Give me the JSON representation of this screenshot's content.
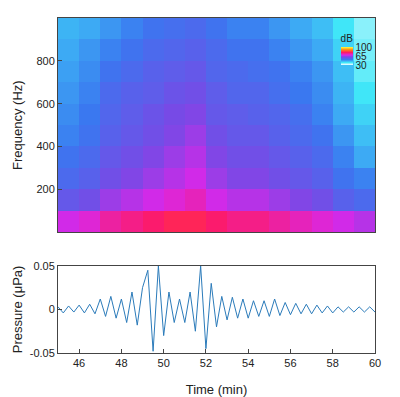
{
  "chart_data": [
    {
      "type": "heatmap",
      "y_label": "Frequency (Hz)",
      "tick_labels": "y",
      "xlim": [
        45,
        60
      ],
      "ylim": [
        0,
        1000
      ],
      "yticks": [
        200,
        400,
        600,
        800
      ],
      "x": [
        45.5,
        46.5,
        47.5,
        48.5,
        49.5,
        50.5,
        51.5,
        52.5,
        53.5,
        54.5,
        55.5,
        56.5,
        57.5,
        58.5,
        59.5
      ],
      "y": [
        50,
        150,
        250,
        350,
        450,
        550,
        650,
        750,
        850,
        950
      ],
      "cells": [
        [
          68,
          70,
          74,
          76,
          78,
          80,
          80,
          78,
          76,
          76,
          74,
          72,
          70,
          68,
          66
        ],
        [
          58,
          60,
          64,
          66,
          68,
          70,
          72,
          68,
          66,
          66,
          64,
          62,
          60,
          56,
          54
        ],
        [
          54,
          56,
          60,
          62,
          64,
          66,
          68,
          64,
          62,
          62,
          60,
          58,
          56,
          52,
          50
        ],
        [
          52,
          54,
          58,
          60,
          62,
          64,
          66,
          62,
          60,
          60,
          58,
          56,
          54,
          50,
          46
        ],
        [
          50,
          52,
          56,
          58,
          60,
          62,
          64,
          60,
          58,
          58,
          56,
          54,
          52,
          48,
          44
        ],
        [
          49,
          51,
          55,
          57,
          59,
          61,
          62,
          58,
          57,
          56,
          55,
          53,
          50,
          46,
          42
        ],
        [
          48,
          50,
          54,
          56,
          57,
          59,
          60,
          57,
          55,
          55,
          53,
          51,
          49,
          45,
          40
        ],
        [
          47,
          49,
          52,
          54,
          56,
          57,
          58,
          55,
          54,
          53,
          52,
          50,
          48,
          44,
          38
        ],
        [
          46,
          48,
          50,
          52,
          54,
          55,
          56,
          54,
          52,
          52,
          50,
          48,
          46,
          42,
          37
        ],
        [
          45,
          46,
          48,
          50,
          52,
          53,
          54,
          52,
          50,
          50,
          48,
          46,
          44,
          40,
          36
        ]
      ],
      "colorbar": {
        "title": "dB",
        "range": [
          30,
          100
        ],
        "ticks": [
          30,
          65,
          100
        ]
      }
    },
    {
      "type": "line",
      "x_label": "Time (min)",
      "y_label": "Pressure (μPa)",
      "color": "#2b7bba",
      "xlim": [
        45,
        60
      ],
      "ylim": [
        -0.05,
        0.05
      ],
      "xticks": [
        46,
        48,
        50,
        52,
        54,
        56,
        58,
        60
      ],
      "yticks": [
        -0.05,
        0,
        0.05
      ],
      "x": [
        45,
        45.25,
        45.5,
        45.75,
        46,
        46.25,
        46.5,
        46.75,
        47,
        47.25,
        47.5,
        47.75,
        48,
        48.25,
        48.5,
        48.75,
        49,
        49.25,
        49.5,
        49.75,
        50,
        50.25,
        50.5,
        50.75,
        51,
        51.25,
        51.5,
        51.75,
        52,
        52.25,
        52.5,
        52.75,
        53,
        53.25,
        53.5,
        53.75,
        54,
        54.25,
        54.5,
        54.75,
        55,
        55.25,
        55.5,
        55.75,
        56,
        56.25,
        56.5,
        56.75,
        57,
        57.25,
        57.5,
        57.75,
        58,
        58.25,
        58.5,
        58.75,
        59,
        59.25,
        59.5,
        59.75,
        60
      ],
      "values": [
        0.003,
        -0.004,
        0.004,
        -0.003,
        0.005,
        -0.004,
        0.006,
        -0.005,
        0.012,
        -0.008,
        0.015,
        -0.01,
        0.012,
        -0.015,
        0.02,
        -0.018,
        0.025,
        0.045,
        -0.048,
        0.05,
        -0.03,
        0.02,
        -0.015,
        0.012,
        -0.015,
        0.02,
        -0.025,
        0.05,
        -0.045,
        0.03,
        -0.02,
        0.015,
        -0.012,
        0.014,
        -0.01,
        0.012,
        -0.01,
        0.01,
        -0.008,
        0.01,
        -0.008,
        0.012,
        -0.007,
        0.008,
        -0.006,
        0.007,
        -0.005,
        0.006,
        -0.005,
        0.005,
        -0.004,
        0.004,
        -0.004,
        0.003,
        -0.003,
        0.003,
        -0.003,
        0.003,
        -0.003,
        0.003,
        -0.003
      ]
    }
  ]
}
